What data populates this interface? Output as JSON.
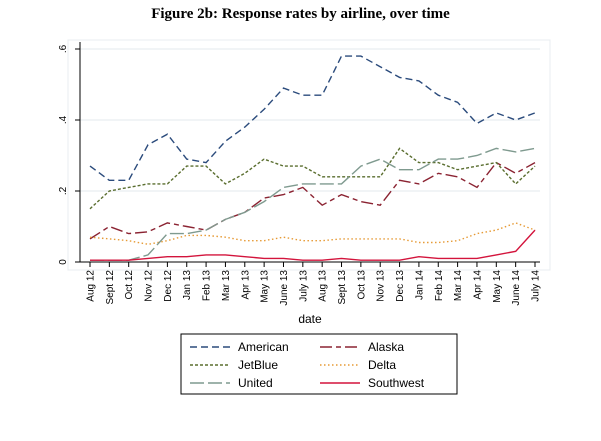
{
  "chart_data": {
    "type": "line",
    "title": "Figure 2b: Response rates by airline, over time",
    "xlabel": "date",
    "ylabel": "",
    "ylim": [
      0,
      0.6
    ],
    "yticks": [
      0,
      0.2,
      0.4,
      0.6
    ],
    "ytick_labels": [
      "0",
      ".2",
      ".4",
      ".6"
    ],
    "categories": [
      "Aug 12",
      "Sept 12",
      "Oct 12",
      "Nov 12",
      "Dec 12",
      "Jan 13",
      "Feb 13",
      "Mar 13",
      "Apr 13",
      "May 13",
      "June 13",
      "July 13",
      "Aug 13",
      "Sept 13",
      "Oct 13",
      "Nov 13",
      "Dec 13",
      "Jan 14",
      "Feb 14",
      "Mar 14",
      "Apr 14",
      "May 14",
      "June 14",
      "July 14"
    ],
    "grid": true,
    "legend_position": "bottom",
    "series": [
      {
        "name": "American",
        "color": "#2b4b7c",
        "dash": "dash",
        "values": [
          0.27,
          0.23,
          0.23,
          0.33,
          0.36,
          0.29,
          0.28,
          0.34,
          0.38,
          0.43,
          0.49,
          0.47,
          0.47,
          0.58,
          0.58,
          0.55,
          0.52,
          0.51,
          0.47,
          0.45,
          0.39,
          0.42,
          0.4,
          0.42
        ]
      },
      {
        "name": "Alaska",
        "color": "#8b2332",
        "dash": "longdash",
        "values": [
          0.065,
          0.1,
          0.08,
          0.085,
          0.11,
          0.1,
          0.09,
          0.12,
          0.14,
          0.18,
          0.19,
          0.21,
          0.16,
          0.19,
          0.17,
          0.16,
          0.23,
          0.22,
          0.25,
          0.24,
          0.21,
          0.28,
          0.25,
          0.28
        ]
      },
      {
        "name": "JetBlue",
        "color": "#5a6e2f",
        "dash": "shortdot",
        "values": [
          0.15,
          0.2,
          0.21,
          0.22,
          0.22,
          0.27,
          0.27,
          0.22,
          0.25,
          0.29,
          0.27,
          0.27,
          0.24,
          0.24,
          0.24,
          0.24,
          0.32,
          0.28,
          0.28,
          0.26,
          0.27,
          0.28,
          0.22,
          0.27
        ]
      },
      {
        "name": "Delta",
        "color": "#e69a35",
        "dash": "dot",
        "values": [
          0.07,
          0.065,
          0.06,
          0.05,
          0.06,
          0.075,
          0.075,
          0.07,
          0.06,
          0.06,
          0.07,
          0.06,
          0.06,
          0.065,
          0.065,
          0.065,
          0.065,
          0.055,
          0.055,
          0.06,
          0.08,
          0.09,
          0.11,
          0.09
        ]
      },
      {
        "name": "United",
        "color": "#7f9a8f",
        "dash": "longdash2",
        "values": [
          0.005,
          0.005,
          0.005,
          0.02,
          0.08,
          0.08,
          0.09,
          0.12,
          0.14,
          0.17,
          0.21,
          0.22,
          0.22,
          0.22,
          0.27,
          0.29,
          0.26,
          0.26,
          0.29,
          0.29,
          0.3,
          0.32,
          0.31,
          0.32
        ]
      },
      {
        "name": "Southwest",
        "color": "#d3143c",
        "dash": "solid",
        "values": [
          0.005,
          0.005,
          0.005,
          0.01,
          0.015,
          0.015,
          0.02,
          0.02,
          0.015,
          0.01,
          0.01,
          0.005,
          0.005,
          0.01,
          0.005,
          0.005,
          0.005,
          0.015,
          0.01,
          0.01,
          0.01,
          0.02,
          0.03,
          0.09
        ]
      }
    ]
  }
}
